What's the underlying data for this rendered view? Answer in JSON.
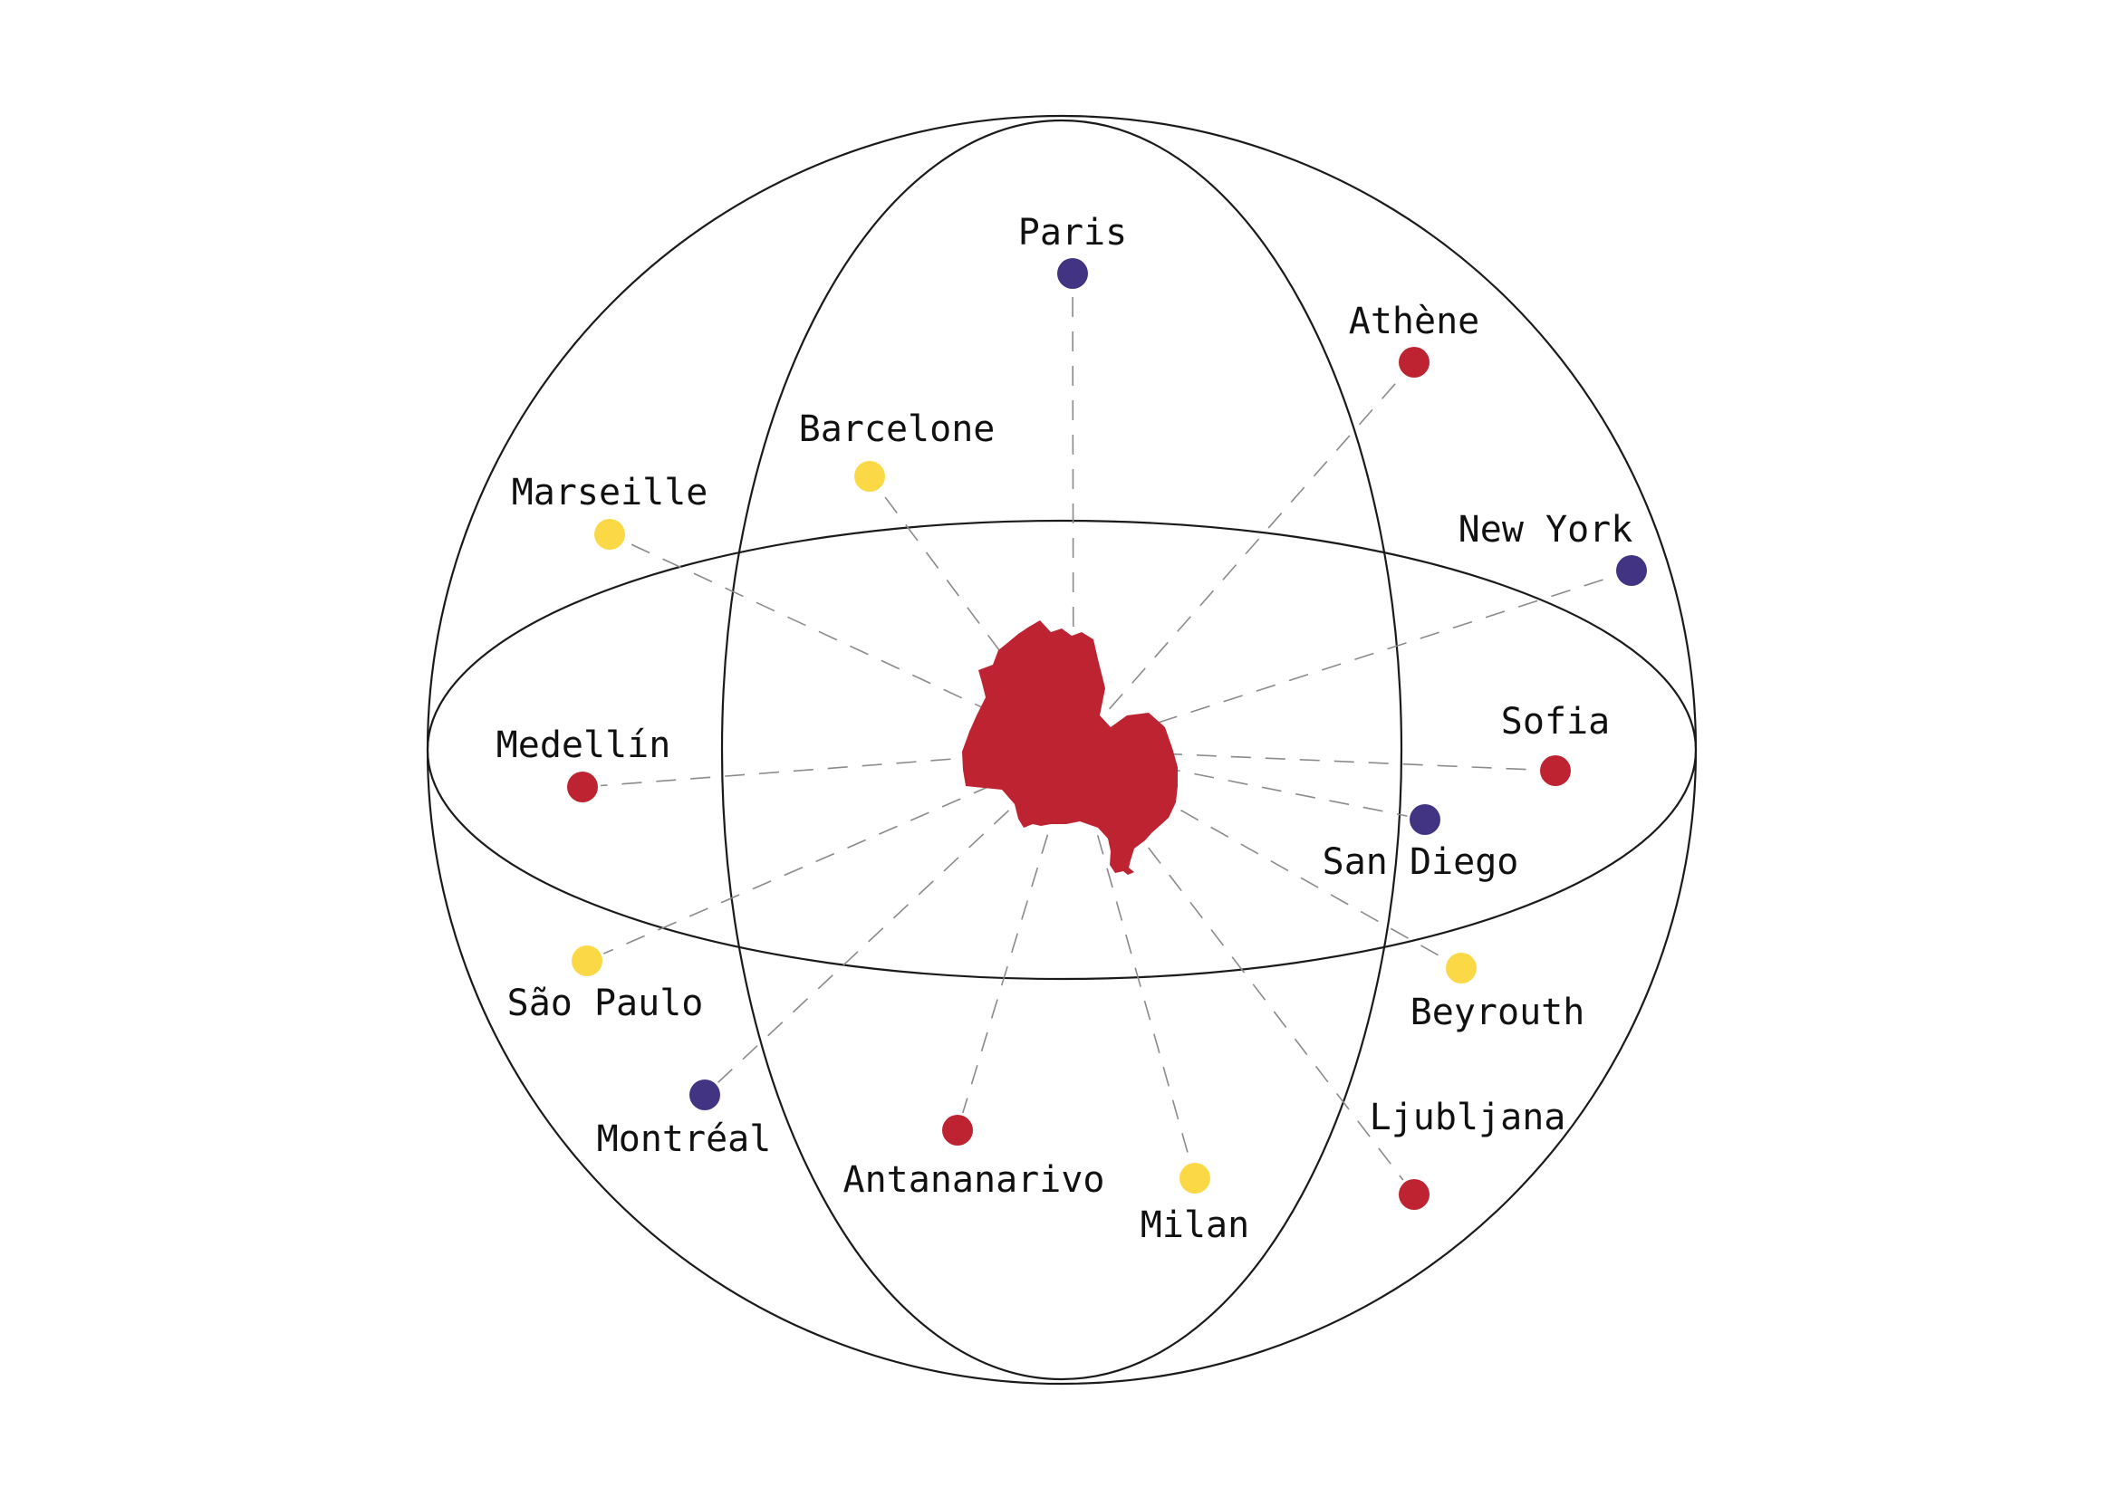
{
  "colors": {
    "red": "#be2332",
    "yellow": "#fbd845",
    "purple": "#433483",
    "outline": "#1a1a1a",
    "connector": "#8a8a8a"
  },
  "center_shape": {
    "name": "city-silhouette",
    "color": "#be2332"
  },
  "cities": [
    {
      "name": "Paris",
      "color": "purple"
    },
    {
      "name": "Athène",
      "color": "red"
    },
    {
      "name": "Barcelone",
      "color": "yellow"
    },
    {
      "name": "Marseille",
      "color": "yellow"
    },
    {
      "name": "New York",
      "color": "purple"
    },
    {
      "name": "Medellín",
      "color": "red"
    },
    {
      "name": "Sofia",
      "color": "red"
    },
    {
      "name": "San Diego",
      "color": "purple"
    },
    {
      "name": "São Paulo",
      "color": "yellow"
    },
    {
      "name": "Beyrouth",
      "color": "yellow"
    },
    {
      "name": "Montréal",
      "color": "purple"
    },
    {
      "name": "Antananarivo",
      "color": "red"
    },
    {
      "name": "Milan",
      "color": "yellow"
    },
    {
      "name": "Ljubljana",
      "color": "red"
    }
  ]
}
